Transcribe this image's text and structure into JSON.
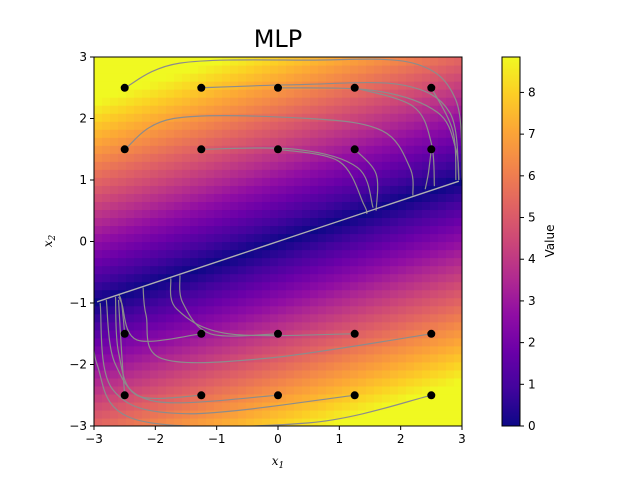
{
  "chart_data": {
    "type": "heatmap",
    "title": "MLP",
    "xlabel_base": "x",
    "xlabel_sub": "1",
    "ylabel_base": "x",
    "ylabel_sub": "2",
    "xlim": [
      -3,
      3
    ],
    "ylim": [
      -3,
      3
    ],
    "xticks": [
      "−3",
      "−2",
      "−1",
      "0",
      "1",
      "2",
      "3"
    ],
    "yticks": [
      "−3",
      "−2",
      "−1",
      "0",
      "1",
      "2",
      "3"
    ],
    "colorbar": {
      "label": "Value",
      "range": [
        0,
        8.85
      ],
      "ticks": [
        "0",
        "1",
        "2",
        "3",
        "4",
        "5",
        "6",
        "7",
        "8"
      ],
      "colormap": "plasma"
    },
    "value_field": "approx |x1 - 3*x2| * 0.9 (low along the line x2 = x1/3)",
    "start_points": [
      [
        -2.5,
        2.5
      ],
      [
        -1.25,
        2.5
      ],
      [
        0,
        2.5
      ],
      [
        1.25,
        2.5
      ],
      [
        2.5,
        2.5
      ],
      [
        -2.5,
        1.5
      ],
      [
        -1.25,
        1.5
      ],
      [
        0,
        1.5
      ],
      [
        1.25,
        1.5
      ],
      [
        2.5,
        1.5
      ],
      [
        0,
        -1.5
      ],
      [
        1.25,
        -1.5
      ],
      [
        2.5,
        -1.5
      ],
      [
        -2.5,
        -1.5
      ],
      [
        -1.25,
        -1.5
      ],
      [
        -2.5,
        -2.5
      ],
      [
        -1.25,
        -2.5
      ],
      [
        0,
        -2.5
      ],
      [
        1.25,
        -2.5
      ],
      [
        2.5,
        -2.5
      ]
    ],
    "trajectories": [
      [
        [
          -2.5,
          2.5
        ],
        [
          -1.6,
          2.9
        ],
        [
          0.5,
          2.95
        ],
        [
          2.2,
          2.9
        ],
        [
          2.9,
          2.3
        ],
        [
          3.0,
          1.0
        ]
      ],
      [
        [
          -1.25,
          2.5
        ],
        [
          0.3,
          2.55
        ],
        [
          2.0,
          2.55
        ],
        [
          2.8,
          2.1
        ],
        [
          2.95,
          1.0
        ]
      ],
      [
        [
          0,
          2.5
        ],
        [
          1.6,
          2.45
        ],
        [
          2.6,
          2.1
        ],
        [
          2.9,
          1.5
        ],
        [
          2.95,
          1.0
        ]
      ],
      [
        [
          1.25,
          2.5
        ],
        [
          2.2,
          2.2
        ],
        [
          2.5,
          1.6
        ],
        [
          2.55,
          0.9
        ]
      ],
      [
        [
          2.5,
          2.5
        ],
        [
          2.85,
          1.8
        ],
        [
          2.9,
          1.0
        ]
      ],
      [
        [
          -2.5,
          1.5
        ],
        [
          -1.7,
          2.0
        ],
        [
          0.5,
          2.0
        ],
        [
          1.7,
          1.8
        ],
        [
          2.15,
          1.2
        ],
        [
          2.2,
          0.75
        ]
      ],
      [
        [
          -1.25,
          1.5
        ],
        [
          0.3,
          1.5
        ],
        [
          1.3,
          1.2
        ],
        [
          1.55,
          0.55
        ]
      ],
      [
        [
          0,
          1.5
        ],
        [
          1.0,
          1.3
        ],
        [
          1.4,
          0.6
        ],
        [
          1.45,
          0.45
        ]
      ],
      [
        [
          1.25,
          1.5
        ],
        [
          1.6,
          1.1
        ],
        [
          1.6,
          0.5
        ]
      ],
      [
        [
          2.5,
          1.5
        ],
        [
          2.45,
          1.1
        ],
        [
          2.4,
          0.85
        ]
      ],
      [
        [
          0,
          -1.5
        ],
        [
          -1.1,
          -1.5
        ],
        [
          -1.55,
          -1.0
        ],
        [
          -1.6,
          -0.55
        ]
      ],
      [
        [
          1.25,
          -1.5
        ],
        [
          -0.8,
          -1.5
        ],
        [
          -1.65,
          -1.1
        ],
        [
          -1.75,
          -0.6
        ]
      ],
      [
        [
          2.5,
          -1.5
        ],
        [
          -0.2,
          -1.9
        ],
        [
          -1.9,
          -1.9
        ],
        [
          -2.15,
          -1.2
        ],
        [
          -2.2,
          -0.75
        ]
      ],
      [
        [
          -2.5,
          -1.5
        ],
        [
          -2.55,
          -1.0
        ],
        [
          -2.6,
          -0.85
        ]
      ],
      [
        [
          -1.25,
          -1.5
        ],
        [
          -2.3,
          -1.6
        ],
        [
          -2.55,
          -1.0
        ],
        [
          -2.6,
          -0.9
        ]
      ],
      [
        [
          -2.5,
          -2.5
        ],
        [
          -2.55,
          -1.8
        ],
        [
          -2.6,
          -0.95
        ]
      ],
      [
        [
          -1.25,
          -2.5
        ],
        [
          -2.3,
          -2.5
        ],
        [
          -2.6,
          -1.8
        ],
        [
          -2.65,
          -0.9
        ]
      ],
      [
        [
          0,
          -2.5
        ],
        [
          -2.0,
          -2.6
        ],
        [
          -2.65,
          -2.0
        ],
        [
          -2.8,
          -0.95
        ]
      ],
      [
        [
          1.25,
          -2.5
        ],
        [
          -1.5,
          -2.8
        ],
        [
          -2.7,
          -2.4
        ],
        [
          -2.9,
          -1.0
        ]
      ],
      [
        [
          2.5,
          -2.5
        ],
        [
          0.5,
          -2.95
        ],
        [
          -2.3,
          -2.9
        ],
        [
          -2.95,
          -2.0
        ],
        [
          -3.0,
          -1.0
        ]
      ]
    ],
    "line_to_center": [
      [
        -2.95,
        -0.98
      ],
      [
        -0.15,
        -0.05
      ],
      [
        0.12,
        0.04
      ],
      [
        2.95,
        0.98
      ]
    ]
  }
}
